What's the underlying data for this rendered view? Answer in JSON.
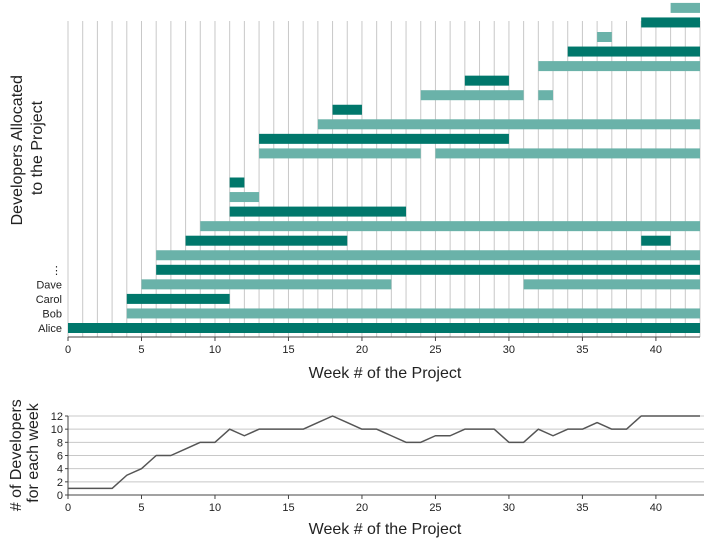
{
  "colors": {
    "primary": "#00776b",
    "secondary": "#6ab2a9",
    "grid": "#c8c8c8",
    "axis": "#444444",
    "line": "#555555"
  },
  "chart_data": [
    {
      "type": "bar",
      "subtype": "gantt",
      "xlabel": "Week # of the Project",
      "ylabel_lines": [
        "Developers Allocated",
        "to the Project"
      ],
      "xlim": [
        0,
        43
      ],
      "xticks": [
        0,
        5,
        10,
        15,
        20,
        25,
        30,
        35,
        40
      ],
      "grid": "vertical every week",
      "row_labels": [
        "Alice",
        "Bob",
        "Carol",
        "Dave",
        "⋮"
      ],
      "rows": [
        [
          {
            "start": 0,
            "end": 43,
            "color": "primary"
          }
        ],
        [
          {
            "start": 4,
            "end": 43,
            "color": "secondary"
          }
        ],
        [
          {
            "start": 4,
            "end": 11,
            "color": "primary"
          }
        ],
        [
          {
            "start": 5,
            "end": 22,
            "color": "secondary"
          },
          {
            "start": 31,
            "end": 43,
            "color": "secondary"
          }
        ],
        [
          {
            "start": 6,
            "end": 43,
            "color": "primary"
          }
        ],
        [
          {
            "start": 6,
            "end": 43,
            "color": "secondary"
          }
        ],
        [
          {
            "start": 8,
            "end": 19,
            "color": "primary"
          },
          {
            "start": 39,
            "end": 41,
            "color": "primary"
          }
        ],
        [
          {
            "start": 9,
            "end": 43,
            "color": "secondary"
          }
        ],
        [
          {
            "start": 11,
            "end": 23,
            "color": "primary"
          }
        ],
        [
          {
            "start": 11,
            "end": 13,
            "color": "secondary"
          }
        ],
        [
          {
            "start": 11,
            "end": 12,
            "color": "primary"
          }
        ],
        [],
        [
          {
            "start": 13,
            "end": 24,
            "color": "secondary"
          },
          {
            "start": 25,
            "end": 43,
            "color": "secondary"
          }
        ],
        [
          {
            "start": 13,
            "end": 30,
            "color": "primary"
          }
        ],
        [
          {
            "start": 17,
            "end": 43,
            "color": "secondary"
          }
        ],
        [
          {
            "start": 18,
            "end": 20,
            "color": "primary"
          }
        ],
        [
          {
            "start": 24,
            "end": 31,
            "color": "secondary"
          },
          {
            "start": 32,
            "end": 33,
            "color": "secondary"
          }
        ],
        [
          {
            "start": 27,
            "end": 30,
            "color": "primary"
          }
        ],
        [
          {
            "start": 32,
            "end": 43,
            "color": "secondary"
          }
        ],
        [
          {
            "start": 34,
            "end": 43,
            "color": "primary"
          }
        ],
        [
          {
            "start": 36,
            "end": 37,
            "color": "secondary"
          }
        ],
        [
          {
            "start": 39,
            "end": 43,
            "color": "primary"
          }
        ],
        [
          {
            "start": 41,
            "end": 43,
            "color": "secondary"
          }
        ]
      ]
    },
    {
      "type": "line",
      "xlabel": "Week # of the Project",
      "ylabel_lines": [
        "# of Developers",
        "for each week"
      ],
      "xlim": [
        0,
        43
      ],
      "ylim": [
        0,
        12
      ],
      "xticks": [
        0,
        5,
        10,
        15,
        20,
        25,
        30,
        35,
        40
      ],
      "yticks": [
        0,
        2,
        4,
        6,
        8,
        10,
        12
      ],
      "grid": "horizontal",
      "x": [
        0,
        1,
        2,
        3,
        4,
        5,
        6,
        7,
        8,
        9,
        10,
        11,
        12,
        13,
        14,
        15,
        16,
        17,
        18,
        19,
        20,
        21,
        22,
        23,
        24,
        25,
        26,
        27,
        28,
        29,
        30,
        31,
        32,
        33,
        34,
        35,
        36,
        37,
        38,
        39,
        40,
        41,
        42,
        43
      ],
      "y": [
        1,
        1,
        1,
        1,
        3,
        4,
        6,
        6,
        7,
        8,
        8,
        10,
        9,
        10,
        10,
        10,
        10,
        11,
        12,
        11,
        10,
        10,
        9,
        8,
        8,
        9,
        9,
        10,
        10,
        10,
        8,
        8,
        10,
        9,
        10,
        10,
        11,
        10,
        10,
        12,
        12,
        12,
        12,
        12
      ]
    }
  ]
}
